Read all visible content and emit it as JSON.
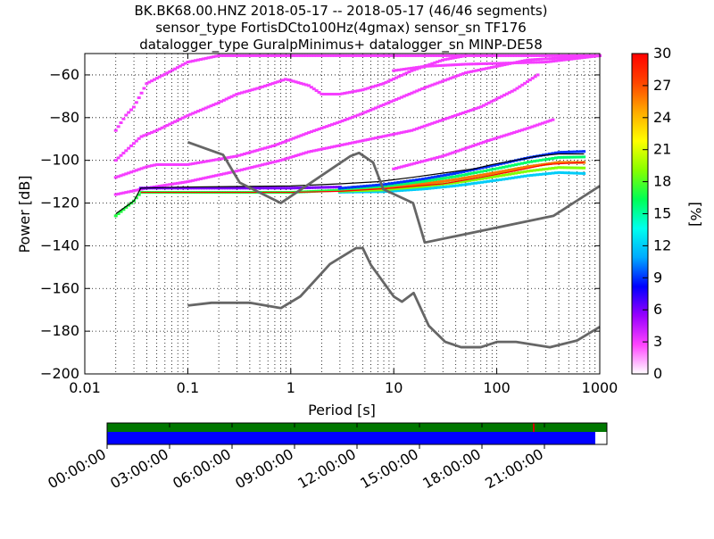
{
  "title_lines": [
    "BK.BK68.00.HNZ   2018-05-17 -- 2018-05-17  (46/46 segments)",
    "sensor_type FortisDCto100Hz(4gmax) sensor_sn TF176",
    "datalogger_type GuralpMinimus+ datalogger_sn MINP-DE58"
  ],
  "chart_data": {
    "type": "heatmap",
    "xlabel": "Period [s]",
    "ylabel": "Power [dB]",
    "x_scale": "log",
    "xlim": [
      0.01,
      1000
    ],
    "ylim": [
      -200,
      -50
    ],
    "x_ticks": [
      {
        "v": 0.01,
        "label": "0.01"
      },
      {
        "v": 0.1,
        "label": "0.1"
      },
      {
        "v": 1,
        "label": "1"
      },
      {
        "v": 10,
        "label": "10"
      },
      {
        "v": 100,
        "label": "100"
      },
      {
        "v": 1000,
        "label": "1000"
      }
    ],
    "y_ticks": [
      {
        "v": -60,
        "label": "−60"
      },
      {
        "v": -80,
        "label": "−80"
      },
      {
        "v": -100,
        "label": "−100"
      },
      {
        "v": -120,
        "label": "−120"
      },
      {
        "v": -140,
        "label": "−140"
      },
      {
        "v": -160,
        "label": "−160"
      },
      {
        "v": -180,
        "label": "−180"
      },
      {
        "v": -200,
        "label": "−200"
      }
    ],
    "grid": true,
    "colorbar": {
      "label": "[%]",
      "range": [
        0,
        30
      ],
      "ticks": [
        {
          "v": 0,
          "label": "0"
        },
        {
          "v": 3,
          "label": "3"
        },
        {
          "v": 6,
          "label": "6"
        },
        {
          "v": 9,
          "label": "9"
        },
        {
          "v": 12,
          "label": "12"
        },
        {
          "v": 15,
          "label": "15"
        },
        {
          "v": 18,
          "label": "18"
        },
        {
          "v": 21,
          "label": "21"
        },
        {
          "v": 24,
          "label": "24"
        },
        {
          "v": 27,
          "label": "27"
        },
        {
          "v": 30,
          "label": "30"
        }
      ],
      "stops": [
        "#ffffff",
        "#ff44ff",
        "#9900ff",
        "#0000ff",
        "#00aaff",
        "#00ffee",
        "#00ff55",
        "#88ff00",
        "#ffff00",
        "#ffaa00",
        "#ff4400",
        "#ff0000"
      ]
    },
    "noise_models": [
      {
        "name": "NHNM",
        "points": [
          [
            0.1,
            -91.5
          ],
          [
            0.22,
            -97.4
          ],
          [
            0.32,
            -110.5
          ],
          [
            0.8,
            -120
          ],
          [
            3.8,
            -98
          ],
          [
            4.6,
            -96.5
          ],
          [
            6.3,
            -101
          ],
          [
            7.9,
            -113.5
          ],
          [
            15.4,
            -120
          ],
          [
            20,
            -138.5
          ],
          [
            354.8,
            -126
          ],
          [
            1000,
            -112
          ]
        ]
      },
      {
        "name": "NLNM",
        "points": [
          [
            0.1,
            -168
          ],
          [
            0.17,
            -166.7
          ],
          [
            0.4,
            -166.7
          ],
          [
            0.8,
            -169.2
          ],
          [
            1.24,
            -163.7
          ],
          [
            2.4,
            -148.6
          ],
          [
            4.3,
            -141.1
          ],
          [
            5,
            -141.1
          ],
          [
            6,
            -149
          ],
          [
            10,
            -163.8
          ],
          [
            12,
            -166.2
          ],
          [
            15.6,
            -162.1
          ],
          [
            21.9,
            -177.5
          ],
          [
            31.6,
            -185
          ],
          [
            45,
            -187.5
          ],
          [
            70,
            -187.5
          ],
          [
            101,
            -185
          ],
          [
            154,
            -185
          ],
          [
            328,
            -187.5
          ],
          [
            600,
            -184.4
          ],
          [
            1000,
            -178
          ]
        ]
      }
    ],
    "median_curves": [
      {
        "name": "mean",
        "color": "#000000",
        "points": [
          [
            0.02,
            -125
          ],
          [
            0.03,
            -119
          ],
          [
            0.035,
            -113
          ],
          [
            0.1,
            -112.5
          ],
          [
            1,
            -112
          ],
          [
            3,
            -111
          ],
          [
            7,
            -110
          ],
          [
            15,
            -108
          ],
          [
            30,
            -106
          ],
          [
            60,
            -104
          ],
          [
            90,
            -102
          ],
          [
            150,
            -100
          ],
          [
            250,
            -98
          ],
          [
            400,
            -97
          ],
          [
            700,
            -97
          ]
        ]
      },
      {
        "name": "mode",
        "color": "#ff0000",
        "points": [
          [
            0.035,
            -115
          ],
          [
            0.1,
            -115
          ],
          [
            1,
            -115
          ],
          [
            3,
            -114.5
          ],
          [
            10,
            -113
          ],
          [
            30,
            -111
          ],
          [
            70,
            -108
          ],
          [
            150,
            -105
          ],
          [
            300,
            -102
          ],
          [
            700,
            -101
          ]
        ]
      }
    ],
    "bands": [
      {
        "name": "primary",
        "pct": 17,
        "points": [
          [
            0.02,
            -126
          ],
          [
            0.03,
            -119
          ],
          [
            0.035,
            -115
          ],
          [
            0.1,
            -115
          ],
          [
            1,
            -115
          ],
          [
            3,
            -114
          ],
          [
            8,
            -113
          ],
          [
            20,
            -111
          ],
          [
            40,
            -109
          ],
          [
            70,
            -107
          ],
          [
            120,
            -105
          ],
          [
            200,
            -103
          ],
          [
            400,
            -101
          ],
          [
            700,
            -101
          ]
        ]
      },
      {
        "name": "upper-floor",
        "pct": 6,
        "points": [
          [
            0.035,
            -113
          ],
          [
            0.1,
            -113
          ],
          [
            1,
            -113
          ],
          [
            3,
            -112.5
          ]
        ]
      }
    ],
    "sparse_tracks": [
      {
        "pct": 3,
        "points": [
          [
            0.02,
            -86
          ],
          [
            0.025,
            -79
          ],
          [
            0.03,
            -75
          ],
          [
            0.04,
            -64
          ],
          [
            0.07,
            -58
          ],
          [
            0.1,
            -54
          ],
          [
            0.2,
            -51
          ],
          [
            1000,
            -51
          ]
        ]
      },
      {
        "pct": 3,
        "points": [
          [
            0.02,
            -100
          ],
          [
            0.035,
            -89
          ],
          [
            0.05,
            -86
          ],
          [
            0.1,
            -79
          ],
          [
            0.2,
            -73
          ],
          [
            0.3,
            -69
          ],
          [
            0.5,
            -66
          ],
          [
            0.9,
            -62
          ],
          [
            1.5,
            -65
          ],
          [
            2,
            -69
          ],
          [
            3,
            -69
          ],
          [
            5,
            -67
          ],
          [
            8,
            -64
          ],
          [
            15,
            -58
          ],
          [
            30,
            -53
          ],
          [
            50,
            -51
          ]
        ]
      },
      {
        "pct": 3,
        "points": [
          [
            0.02,
            -108
          ],
          [
            0.04,
            -103
          ],
          [
            0.05,
            -102
          ],
          [
            0.1,
            -102
          ],
          [
            0.3,
            -98
          ],
          [
            0.7,
            -93
          ],
          [
            1.5,
            -87
          ],
          [
            3,
            -82
          ],
          [
            5,
            -78
          ],
          [
            10,
            -72
          ],
          [
            20,
            -66
          ],
          [
            50,
            -59
          ],
          [
            200,
            -53
          ],
          [
            1000,
            -51
          ]
        ]
      },
      {
        "pct": 3,
        "points": [
          [
            0.02,
            -116
          ],
          [
            0.04,
            -113
          ],
          [
            0.1,
            -110
          ],
          [
            0.3,
            -105
          ],
          [
            0.8,
            -100
          ],
          [
            1.5,
            -96
          ],
          [
            3,
            -93
          ],
          [
            6,
            -90
          ],
          [
            15,
            -86
          ],
          [
            30,
            -81
          ],
          [
            70,
            -75
          ],
          [
            150,
            -67
          ],
          [
            250,
            -60
          ]
        ]
      },
      {
        "pct": 3,
        "points": [
          [
            10,
            -104
          ],
          [
            30,
            -98
          ],
          [
            80,
            -91
          ],
          [
            200,
            -85
          ],
          [
            350,
            -81
          ]
        ]
      },
      {
        "pct": 3,
        "points": [
          [
            10,
            -58
          ],
          [
            20,
            -56
          ],
          [
            50,
            -55
          ],
          [
            300,
            -54
          ],
          [
            1000,
            -51
          ]
        ]
      }
    ],
    "bar_labels": [
      "00:00:00",
      "03:00:00",
      "06:00:00",
      "09:00:00",
      "12:00:00",
      "15:00:00",
      "18:00:00",
      "21:00:00"
    ]
  }
}
